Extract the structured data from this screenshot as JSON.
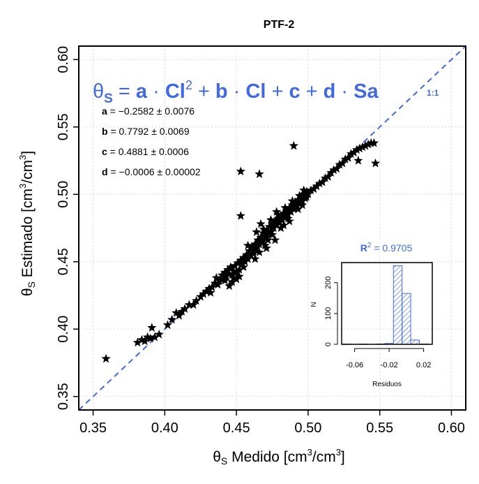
{
  "chart_data": [
    {
      "type": "scatter",
      "title": "PTF-2",
      "xlabel_symbol": "θ",
      "xlabel_sub": "S",
      "xlabel_text": " Medido [cm",
      "xlabel_sup": "3",
      "xlabel_tail": "/cm",
      "xlabel_sup2": "3",
      "xlabel_end": "]",
      "ylabel_symbol": "θ",
      "ylabel_sub": "S",
      "ylabel_text": " Estimado [cm",
      "ylabel_sup": "3",
      "ylabel_tail": "/cm",
      "ylabel_sup2": "3",
      "ylabel_end": "]",
      "xlim": [
        0.34,
        0.61
      ],
      "ylim": [
        0.34,
        0.61
      ],
      "xticks": [
        "0.35",
        "0.40",
        "0.45",
        "0.50",
        "0.55",
        "0.60"
      ],
      "yticks": [
        "0.35",
        "0.40",
        "0.45",
        "0.50",
        "0.55",
        "0.60"
      ],
      "xtick_values": [
        0.35,
        0.4,
        0.45,
        0.5,
        0.55,
        0.6
      ],
      "ytick_values": [
        0.35,
        0.4,
        0.45,
        0.5,
        0.55,
        0.6
      ],
      "grid": true,
      "marker": "star",
      "line_1to1_label": "1:1",
      "equation": {
        "theta": "θ",
        "theta_sub": "S",
        "eq": " = ",
        "a": "a",
        "dot": " · ",
        "cl": "Cl",
        "sq": "2",
        "plus1": " + ",
        "b": "b",
        "cl2": "Cl",
        "plus2": " + ",
        "c": "c",
        "plus3": " + ",
        "d": "d",
        "sa": "Sa"
      },
      "coefficients": [
        {
          "name": "a",
          "value": " = −0.2582 ± 0.0076"
        },
        {
          "name": "b",
          "value": " = 0.7792 ± 0.0069"
        },
        {
          "name": "c",
          "value": " = 0.4881 ± 0.0006"
        },
        {
          "name": "d",
          "value": " = −0.0006 ± 0.00002"
        }
      ],
      "points": [
        [
          0.359,
          0.378
        ],
        [
          0.381,
          0.39
        ],
        [
          0.384,
          0.392
        ],
        [
          0.386,
          0.391
        ],
        [
          0.388,
          0.394
        ],
        [
          0.39,
          0.393
        ],
        [
          0.391,
          0.401
        ],
        [
          0.393,
          0.394
        ],
        [
          0.396,
          0.396
        ],
        [
          0.402,
          0.403
        ],
        [
          0.405,
          0.407
        ],
        [
          0.408,
          0.412
        ],
        [
          0.41,
          0.41
        ],
        [
          0.412,
          0.413
        ],
        [
          0.414,
          0.415
        ],
        [
          0.417,
          0.418
        ],
        [
          0.42,
          0.418
        ],
        [
          0.422,
          0.421
        ],
        [
          0.425,
          0.424
        ],
        [
          0.427,
          0.426
        ],
        [
          0.429,
          0.428
        ],
        [
          0.431,
          0.43
        ],
        [
          0.433,
          0.431
        ],
        [
          0.435,
          0.434
        ],
        [
          0.436,
          0.438
        ],
        [
          0.438,
          0.436
        ],
        [
          0.44,
          0.44
        ],
        [
          0.441,
          0.437
        ],
        [
          0.442,
          0.442
        ],
        [
          0.443,
          0.439
        ],
        [
          0.444,
          0.444
        ],
        [
          0.445,
          0.441
        ],
        [
          0.446,
          0.446
        ],
        [
          0.447,
          0.44
        ],
        [
          0.448,
          0.443
        ],
        [
          0.449,
          0.447
        ],
        [
          0.45,
          0.442
        ],
        [
          0.451,
          0.449
        ],
        [
          0.452,
          0.444
        ],
        [
          0.453,
          0.451
        ],
        [
          0.454,
          0.448
        ],
        [
          0.455,
          0.453
        ],
        [
          0.456,
          0.45
        ],
        [
          0.457,
          0.455
        ],
        [
          0.458,
          0.452
        ],
        [
          0.459,
          0.458
        ],
        [
          0.46,
          0.455
        ],
        [
          0.461,
          0.461
        ],
        [
          0.462,
          0.458
        ],
        [
          0.463,
          0.463
        ],
        [
          0.464,
          0.46
        ],
        [
          0.465,
          0.466
        ],
        [
          0.466,
          0.463
        ],
        [
          0.467,
          0.468
        ],
        [
          0.468,
          0.465
        ],
        [
          0.469,
          0.471
        ],
        [
          0.47,
          0.468
        ],
        [
          0.471,
          0.473
        ],
        [
          0.472,
          0.47
        ],
        [
          0.473,
          0.476
        ],
        [
          0.474,
          0.472
        ],
        [
          0.475,
          0.478
        ],
        [
          0.476,
          0.475
        ],
        [
          0.477,
          0.48
        ],
        [
          0.478,
          0.477
        ],
        [
          0.479,
          0.482
        ],
        [
          0.48,
          0.479
        ],
        [
          0.481,
          0.484
        ],
        [
          0.482,
          0.481
        ],
        [
          0.483,
          0.486
        ],
        [
          0.484,
          0.483
        ],
        [
          0.485,
          0.488
        ],
        [
          0.486,
          0.485
        ],
        [
          0.487,
          0.49
        ],
        [
          0.488,
          0.487
        ],
        [
          0.489,
          0.492
        ],
        [
          0.49,
          0.489
        ],
        [
          0.491,
          0.494
        ],
        [
          0.492,
          0.491
        ],
        [
          0.493,
          0.496
        ],
        [
          0.494,
          0.493
        ],
        [
          0.495,
          0.498
        ],
        [
          0.496,
          0.495
        ],
        [
          0.497,
          0.5
        ],
        [
          0.498,
          0.497
        ],
        [
          0.499,
          0.502
        ],
        [
          0.5,
          0.5
        ],
        [
          0.502,
          0.503
        ],
        [
          0.504,
          0.504
        ],
        [
          0.506,
          0.506
        ],
        [
          0.508,
          0.508
        ],
        [
          0.51,
          0.509
        ],
        [
          0.512,
          0.512
        ],
        [
          0.514,
          0.513
        ],
        [
          0.516,
          0.516
        ],
        [
          0.518,
          0.518
        ],
        [
          0.52,
          0.519
        ],
        [
          0.522,
          0.522
        ],
        [
          0.524,
          0.523
        ],
        [
          0.526,
          0.526
        ],
        [
          0.528,
          0.527
        ],
        [
          0.53,
          0.53
        ],
        [
          0.532,
          0.531
        ],
        [
          0.534,
          0.533
        ],
        [
          0.536,
          0.534
        ],
        [
          0.538,
          0.535
        ],
        [
          0.54,
          0.536
        ],
        [
          0.542,
          0.537
        ],
        [
          0.544,
          0.538
        ],
        [
          0.546,
          0.538
        ],
        [
          0.547,
          0.523
        ],
        [
          0.535,
          0.525
        ],
        [
          0.49,
          0.536
        ],
        [
          0.453,
          0.517
        ],
        [
          0.466,
          0.515
        ],
        [
          0.453,
          0.484
        ],
        [
          0.464,
          0.472
        ],
        [
          0.467,
          0.478
        ],
        [
          0.472,
          0.466
        ],
        [
          0.478,
          0.487
        ],
        [
          0.483,
          0.477
        ],
        [
          0.487,
          0.48
        ],
        [
          0.445,
          0.432
        ],
        [
          0.448,
          0.438
        ],
        [
          0.462,
          0.456
        ],
        [
          0.47,
          0.462
        ],
        [
          0.475,
          0.47
        ],
        [
          0.481,
          0.475
        ],
        [
          0.486,
          0.482
        ],
        [
          0.493,
          0.489
        ],
        [
          0.496,
          0.492
        ],
        [
          0.499,
          0.498
        ],
        [
          0.458,
          0.462
        ],
        [
          0.455,
          0.446
        ],
        [
          0.442,
          0.436
        ],
        [
          0.437,
          0.433
        ],
        [
          0.432,
          0.427
        ],
        [
          0.469,
          0.474
        ],
        [
          0.474,
          0.481
        ],
        [
          0.479,
          0.485
        ],
        [
          0.484,
          0.49
        ],
        [
          0.489,
          0.495
        ],
        [
          0.494,
          0.499
        ],
        [
          0.497,
          0.503
        ],
        [
          0.452,
          0.439
        ],
        [
          0.45,
          0.437
        ],
        [
          0.447,
          0.435
        ],
        [
          0.463,
          0.452
        ],
        [
          0.466,
          0.457
        ],
        [
          0.471,
          0.46
        ],
        [
          0.477,
          0.466
        ]
      ]
    },
    {
      "type": "bar",
      "subtype": "histogram",
      "title_prefix": "R",
      "title_sup": "2",
      "title_value": " = 0.9705",
      "xlabel": "Residuos",
      "ylabel": "N",
      "xticks": [
        "-0.06",
        "-0.02",
        "0.02"
      ],
      "xtick_values": [
        -0.06,
        -0.02,
        0.02
      ],
      "yticks": [
        "0",
        "100",
        "200"
      ],
      "ytick_values": [
        0,
        100,
        200
      ],
      "xlim": [
        -0.075,
        0.03
      ],
      "ylim": [
        0,
        265
      ],
      "bins": [
        {
          "x0": -0.075,
          "x1": -0.065,
          "count": 1
        },
        {
          "x0": -0.065,
          "x1": -0.055,
          "count": 0
        },
        {
          "x0": -0.055,
          "x1": -0.045,
          "count": 1
        },
        {
          "x0": -0.045,
          "x1": -0.035,
          "count": 0
        },
        {
          "x0": -0.035,
          "x1": -0.025,
          "count": 1
        },
        {
          "x0": -0.025,
          "x1": -0.015,
          "count": 3
        },
        {
          "x0": -0.015,
          "x1": -0.005,
          "count": 255
        },
        {
          "x0": -0.005,
          "x1": 0.005,
          "count": 165
        },
        {
          "x0": 0.005,
          "x1": 0.015,
          "count": 14
        },
        {
          "x0": 0.015,
          "x1": 0.025,
          "count": 1
        }
      ]
    }
  ],
  "colors": {
    "accent": "#4169E1",
    "points": "#000000",
    "grid": "#d9d9d9",
    "axis": "#000000"
  }
}
